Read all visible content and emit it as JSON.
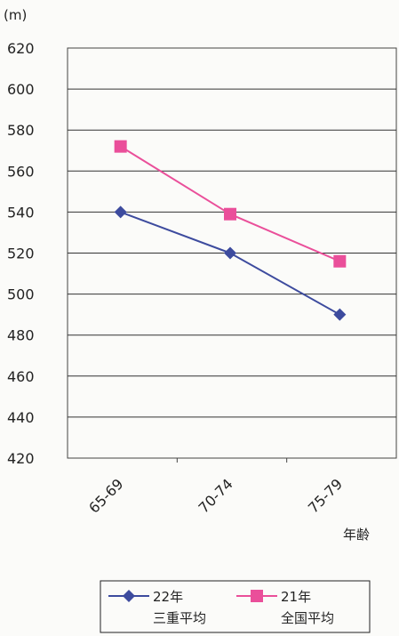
{
  "chart_data": {
    "type": "line",
    "ylabel": "(m)",
    "xlabel": "年齢",
    "categories": [
      "65-69",
      "70-74",
      "75-79"
    ],
    "ylim": [
      420,
      620
    ],
    "ytick_step": 20,
    "grid": true,
    "legend_position": "bottom",
    "series": [
      {
        "name_line1": "22年",
        "name_line2": "三重平均",
        "values": [
          540,
          520,
          490
        ],
        "color": "#3d4b9e",
        "marker": "diamond"
      },
      {
        "name_line1": "21年",
        "name_line2": "全国平均",
        "values": [
          572,
          539,
          516
        ],
        "color": "#ea4f9a",
        "marker": "square"
      }
    ]
  }
}
